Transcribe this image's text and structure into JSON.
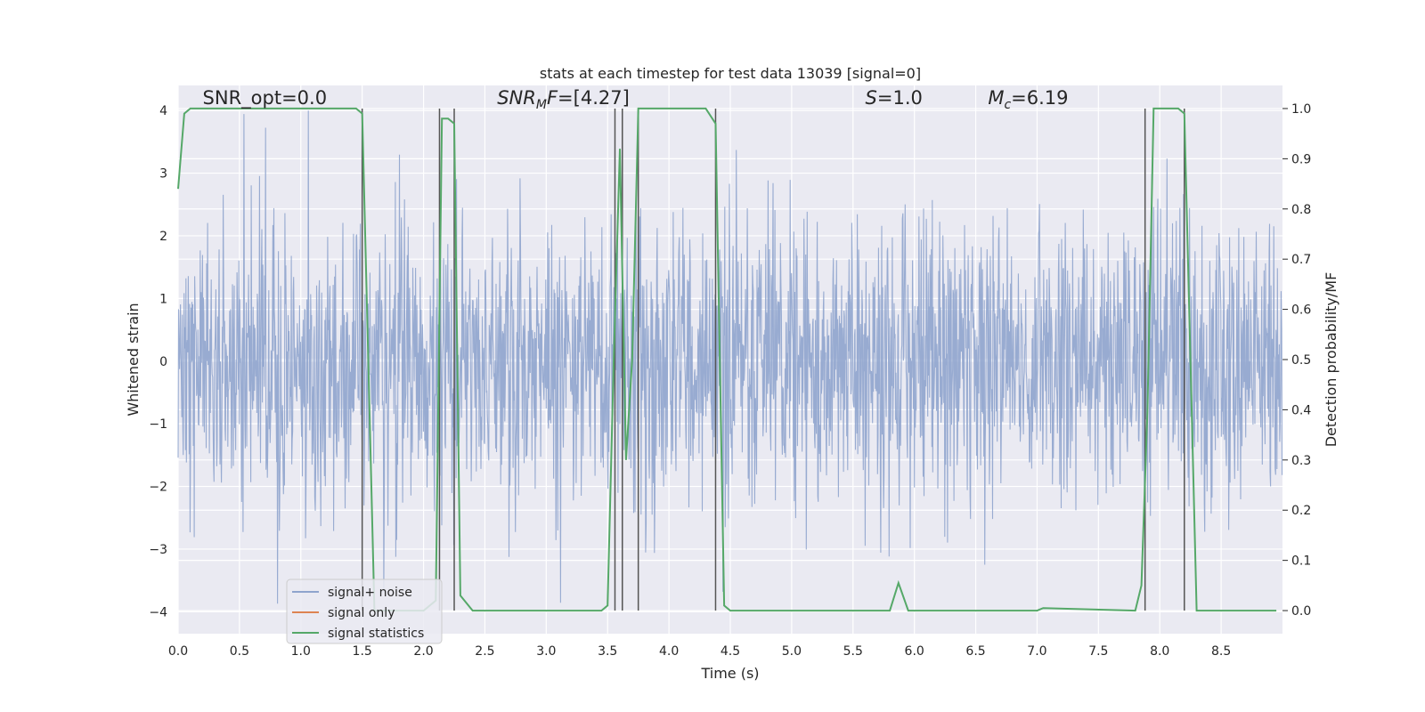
{
  "chart_data": {
    "type": "line",
    "title": "stats at each timestep for test data 13039 [signal=0]",
    "xlabel": "Time (s)",
    "ylabel": "Whitened strain",
    "y2label": "Detection probability/MF",
    "xlim": [
      0.0,
      9.0
    ],
    "ylim": [
      -4.35,
      4.4
    ],
    "y2lim": [
      -0.046,
      1.046
    ],
    "xticks": [
      0.0,
      0.5,
      1.0,
      1.5,
      2.0,
      2.5,
      3.0,
      3.5,
      4.0,
      4.5,
      5.0,
      5.5,
      6.0,
      6.5,
      7.0,
      7.5,
      8.0,
      8.5
    ],
    "yticks": [
      4,
      3,
      2,
      1,
      0,
      -1,
      -2,
      -3,
      -4
    ],
    "y2ticks": [
      1.0,
      0.9,
      0.8,
      0.7,
      0.6,
      0.5,
      0.4,
      0.3,
      0.2,
      0.1,
      0.0
    ],
    "grid": true,
    "legend_position": "lower-left",
    "annotations": [
      {
        "text": "SNR_opt=0.0",
        "x": 0.2,
        "y": 4.1
      },
      {
        "text": "SNR_MF=[4.27]",
        "x": 2.6,
        "y": 4.1
      },
      {
        "text": "S=1.0",
        "x": 5.6,
        "y": 4.1
      },
      {
        "text": "M_c=6.19",
        "x": 6.6,
        "y": 4.1
      }
    ],
    "series": [
      {
        "name": "signal+ noise",
        "color": "#8fa4cd",
        "axis": "left",
        "description": "whitened strain noise, amplitude roughly within -4 to 4",
        "noise_range": [
          -4.0,
          4.0
        ]
      },
      {
        "name": "signal only",
        "color": "#dd8452",
        "axis": "left",
        "values": []
      },
      {
        "name": "signal statistics",
        "color": "#55a868",
        "axis": "right",
        "x": [
          0.0,
          0.05,
          0.1,
          0.2,
          1.2,
          1.45,
          1.5,
          1.6,
          1.7,
          2.0,
          2.1,
          2.15,
          2.2,
          2.25,
          2.3,
          2.4,
          3.45,
          3.5,
          3.55,
          3.6,
          3.65,
          3.7,
          3.75,
          3.8,
          4.0,
          4.3,
          4.38,
          4.45,
          4.5,
          5.8,
          5.87,
          5.95,
          6.0,
          7.0,
          7.05,
          7.8,
          7.85,
          7.9,
          7.95,
          8.15,
          8.2,
          8.3,
          8.95
        ],
        "y": [
          0.84,
          0.99,
          1.0,
          1.0,
          1.0,
          1.0,
          0.99,
          0.0,
          0.0,
          0.0,
          0.02,
          0.98,
          0.98,
          0.97,
          0.03,
          0.0,
          0.0,
          0.01,
          0.5,
          0.92,
          0.3,
          0.5,
          1.0,
          1.0,
          1.0,
          1.0,
          0.97,
          0.01,
          0.0,
          0.0,
          0.055,
          0.0,
          0.0,
          0.0,
          0.005,
          0.0,
          0.05,
          0.4,
          1.0,
          1.0,
          0.99,
          0.0,
          0.0
        ]
      }
    ],
    "vertical_lines_x": [
      1.5,
      2.13,
      2.25,
      3.56,
      3.62,
      3.75,
      4.38,
      7.88,
      8.2
    ]
  }
}
